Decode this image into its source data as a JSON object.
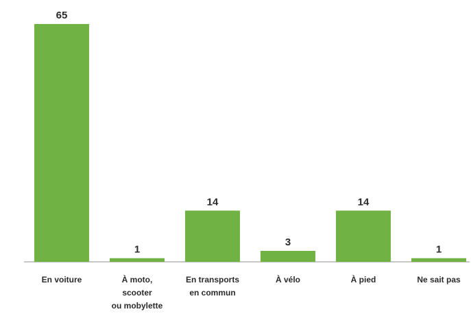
{
  "chart_data": {
    "type": "bar",
    "categories": [
      "En voiture",
      "À moto,\nscooter\nou mobylette",
      "En transports\nen commun",
      "À vélo",
      "À pied",
      "Ne sait pas"
    ],
    "values": [
      65,
      1,
      14,
      3,
      14,
      1
    ],
    "color": "#70b244"
  }
}
